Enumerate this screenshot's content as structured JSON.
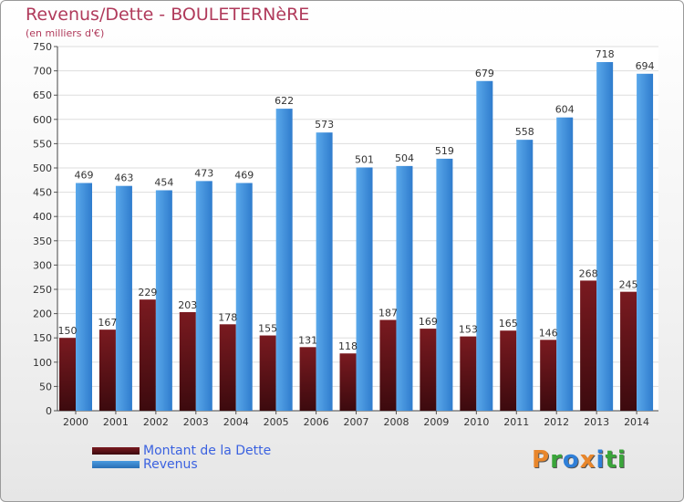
{
  "header": {
    "title": "Revenus/Dette - BOULETERNèRE",
    "subtitle": "(en milliers d'€)"
  },
  "colors": {
    "debt": "#7a1a20",
    "revenue": "#4a9be0",
    "title": "#b03a5b",
    "legend_text": "#3b62e0"
  },
  "legend": {
    "debt_label": "Montant de la Dette",
    "revenue_label": "Revenus"
  },
  "brand": {
    "letters": [
      "P",
      "r",
      "o",
      "x",
      "i",
      "t",
      "i"
    ],
    "colors": [
      "#e8862b",
      "#3aa53a",
      "#2f7fd8",
      "#e8862b",
      "#2f7fd8",
      "#3aa53a",
      "#3aa53a"
    ]
  },
  "chart_data": {
    "type": "bar",
    "categories": [
      "2000",
      "2001",
      "2002",
      "2003",
      "2004",
      "2005",
      "2006",
      "2007",
      "2008",
      "2009",
      "2010",
      "2011",
      "2012",
      "2013",
      "2014"
    ],
    "series": [
      {
        "name": "Montant de la Dette",
        "values": [
          150,
          167,
          229,
          203,
          178,
          155,
          131,
          118,
          187,
          169,
          153,
          165,
          146,
          268,
          245
        ]
      },
      {
        "name": "Revenus",
        "values": [
          469,
          463,
          454,
          473,
          469,
          622,
          573,
          501,
          504,
          519,
          679,
          558,
          604,
          718,
          694
        ]
      }
    ],
    "ylim": [
      0,
      750
    ],
    "yticks": [
      0,
      50,
      100,
      150,
      200,
      250,
      300,
      350,
      400,
      450,
      500,
      550,
      600,
      650,
      700,
      750
    ],
    "grid": true,
    "legend_position": "bottom-left"
  }
}
